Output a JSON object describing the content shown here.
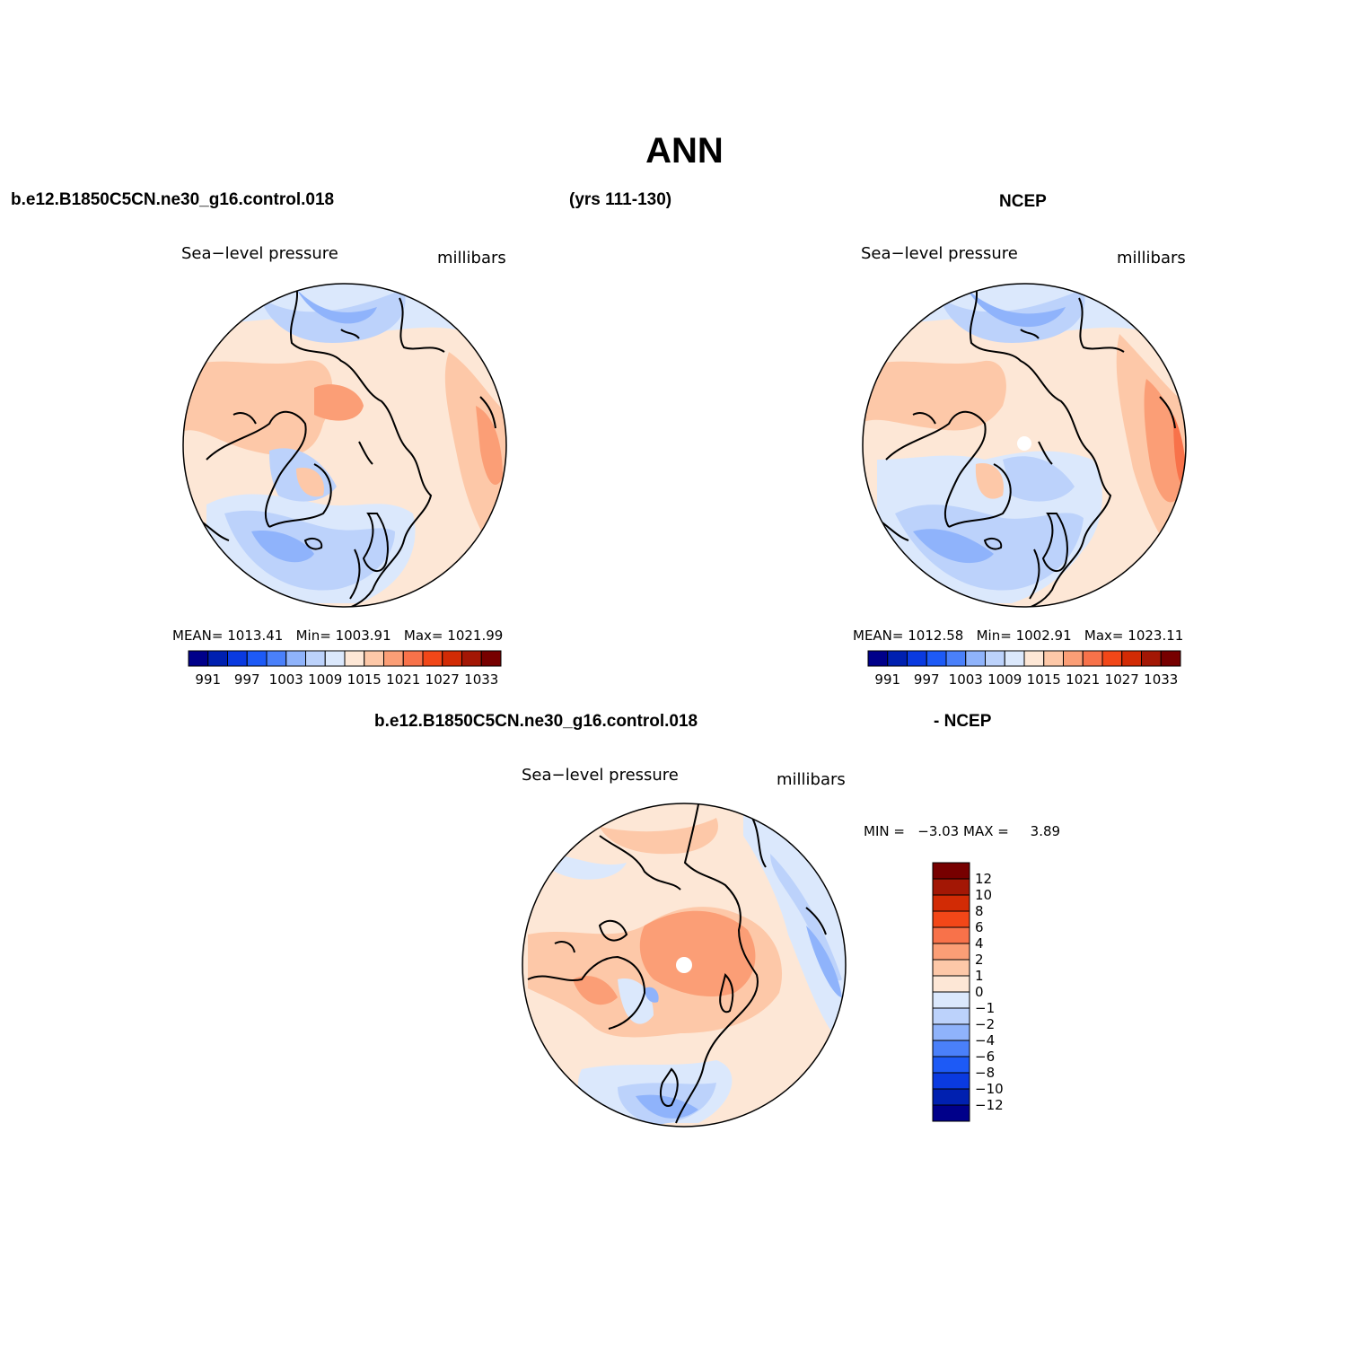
{
  "title": "ANN",
  "top_row": {
    "case_name": "b.e12.B1850C5CN.ne30_g16.control.018",
    "years": "(yrs 111-130)",
    "obs_name": "NCEP"
  },
  "panels": [
    {
      "id": "model",
      "field": "Sea−level pressure",
      "units": "millibars",
      "stats": {
        "mean_label": "MEAN=",
        "mean": "1013.41",
        "min_label": "Min=",
        "min": "1003.91",
        "max_label": "Max=",
        "max": "1021.99"
      }
    },
    {
      "id": "obs",
      "field": "Sea−level pressure",
      "units": "millibars",
      "stats": {
        "mean_label": "MEAN=",
        "mean": "1012.58",
        "min_label": "Min=",
        "min": "1002.91",
        "max_label": "Max=",
        "max": "1023.11"
      }
    }
  ],
  "diff_panel": {
    "case_name": "b.e12.B1850C5CN.ne30_g16.control.018",
    "obs_name": "- NCEP",
    "field": "Sea−level pressure",
    "units": "millibars",
    "stats": {
      "min_label": "MIN =",
      "min": "−3.03",
      "max_label": "MAX =",
      "max": "3.89"
    }
  },
  "abs_colorbar": {
    "colors": [
      "#00008a",
      "#0020b0",
      "#0a3ae0",
      "#1d5af6",
      "#4a80fa",
      "#8fb3fb",
      "#bcd2fb",
      "#dbe8fc",
      "#fde7d6",
      "#fdc8a8",
      "#fb9e76",
      "#f8724a",
      "#f24718",
      "#d22b05",
      "#a31705",
      "#770000"
    ],
    "labels": [
      "991",
      "997",
      "1003",
      "1009",
      "1015",
      "1021",
      "1027",
      "1033"
    ]
  },
  "diff_colorbar": {
    "colors": [
      "#770000",
      "#a31705",
      "#d22b05",
      "#f24718",
      "#f8724a",
      "#fb9e76",
      "#fdc8a8",
      "#fde7d6",
      "#dbe8fc",
      "#bcd2fb",
      "#8fb3fb",
      "#4a80fa",
      "#1d5af6",
      "#0a3ae0",
      "#0020b0",
      "#00008a"
    ],
    "labels": [
      "12",
      "10",
      "8",
      "6",
      "4",
      "2",
      "1",
      "0",
      "−1",
      "−2",
      "−4",
      "−6",
      "−8",
      "−10",
      "−12"
    ]
  }
}
